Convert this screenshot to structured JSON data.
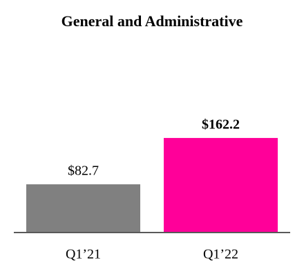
{
  "chart_data": {
    "type": "bar",
    "title": "General and Administrative",
    "categories": [
      "Q1’21",
      "Q1’22"
    ],
    "values": [
      82.7,
      162.2
    ],
    "value_labels": [
      "$82.7",
      "$162.2"
    ],
    "colors": [
      "#808080",
      "#ff0099"
    ]
  }
}
